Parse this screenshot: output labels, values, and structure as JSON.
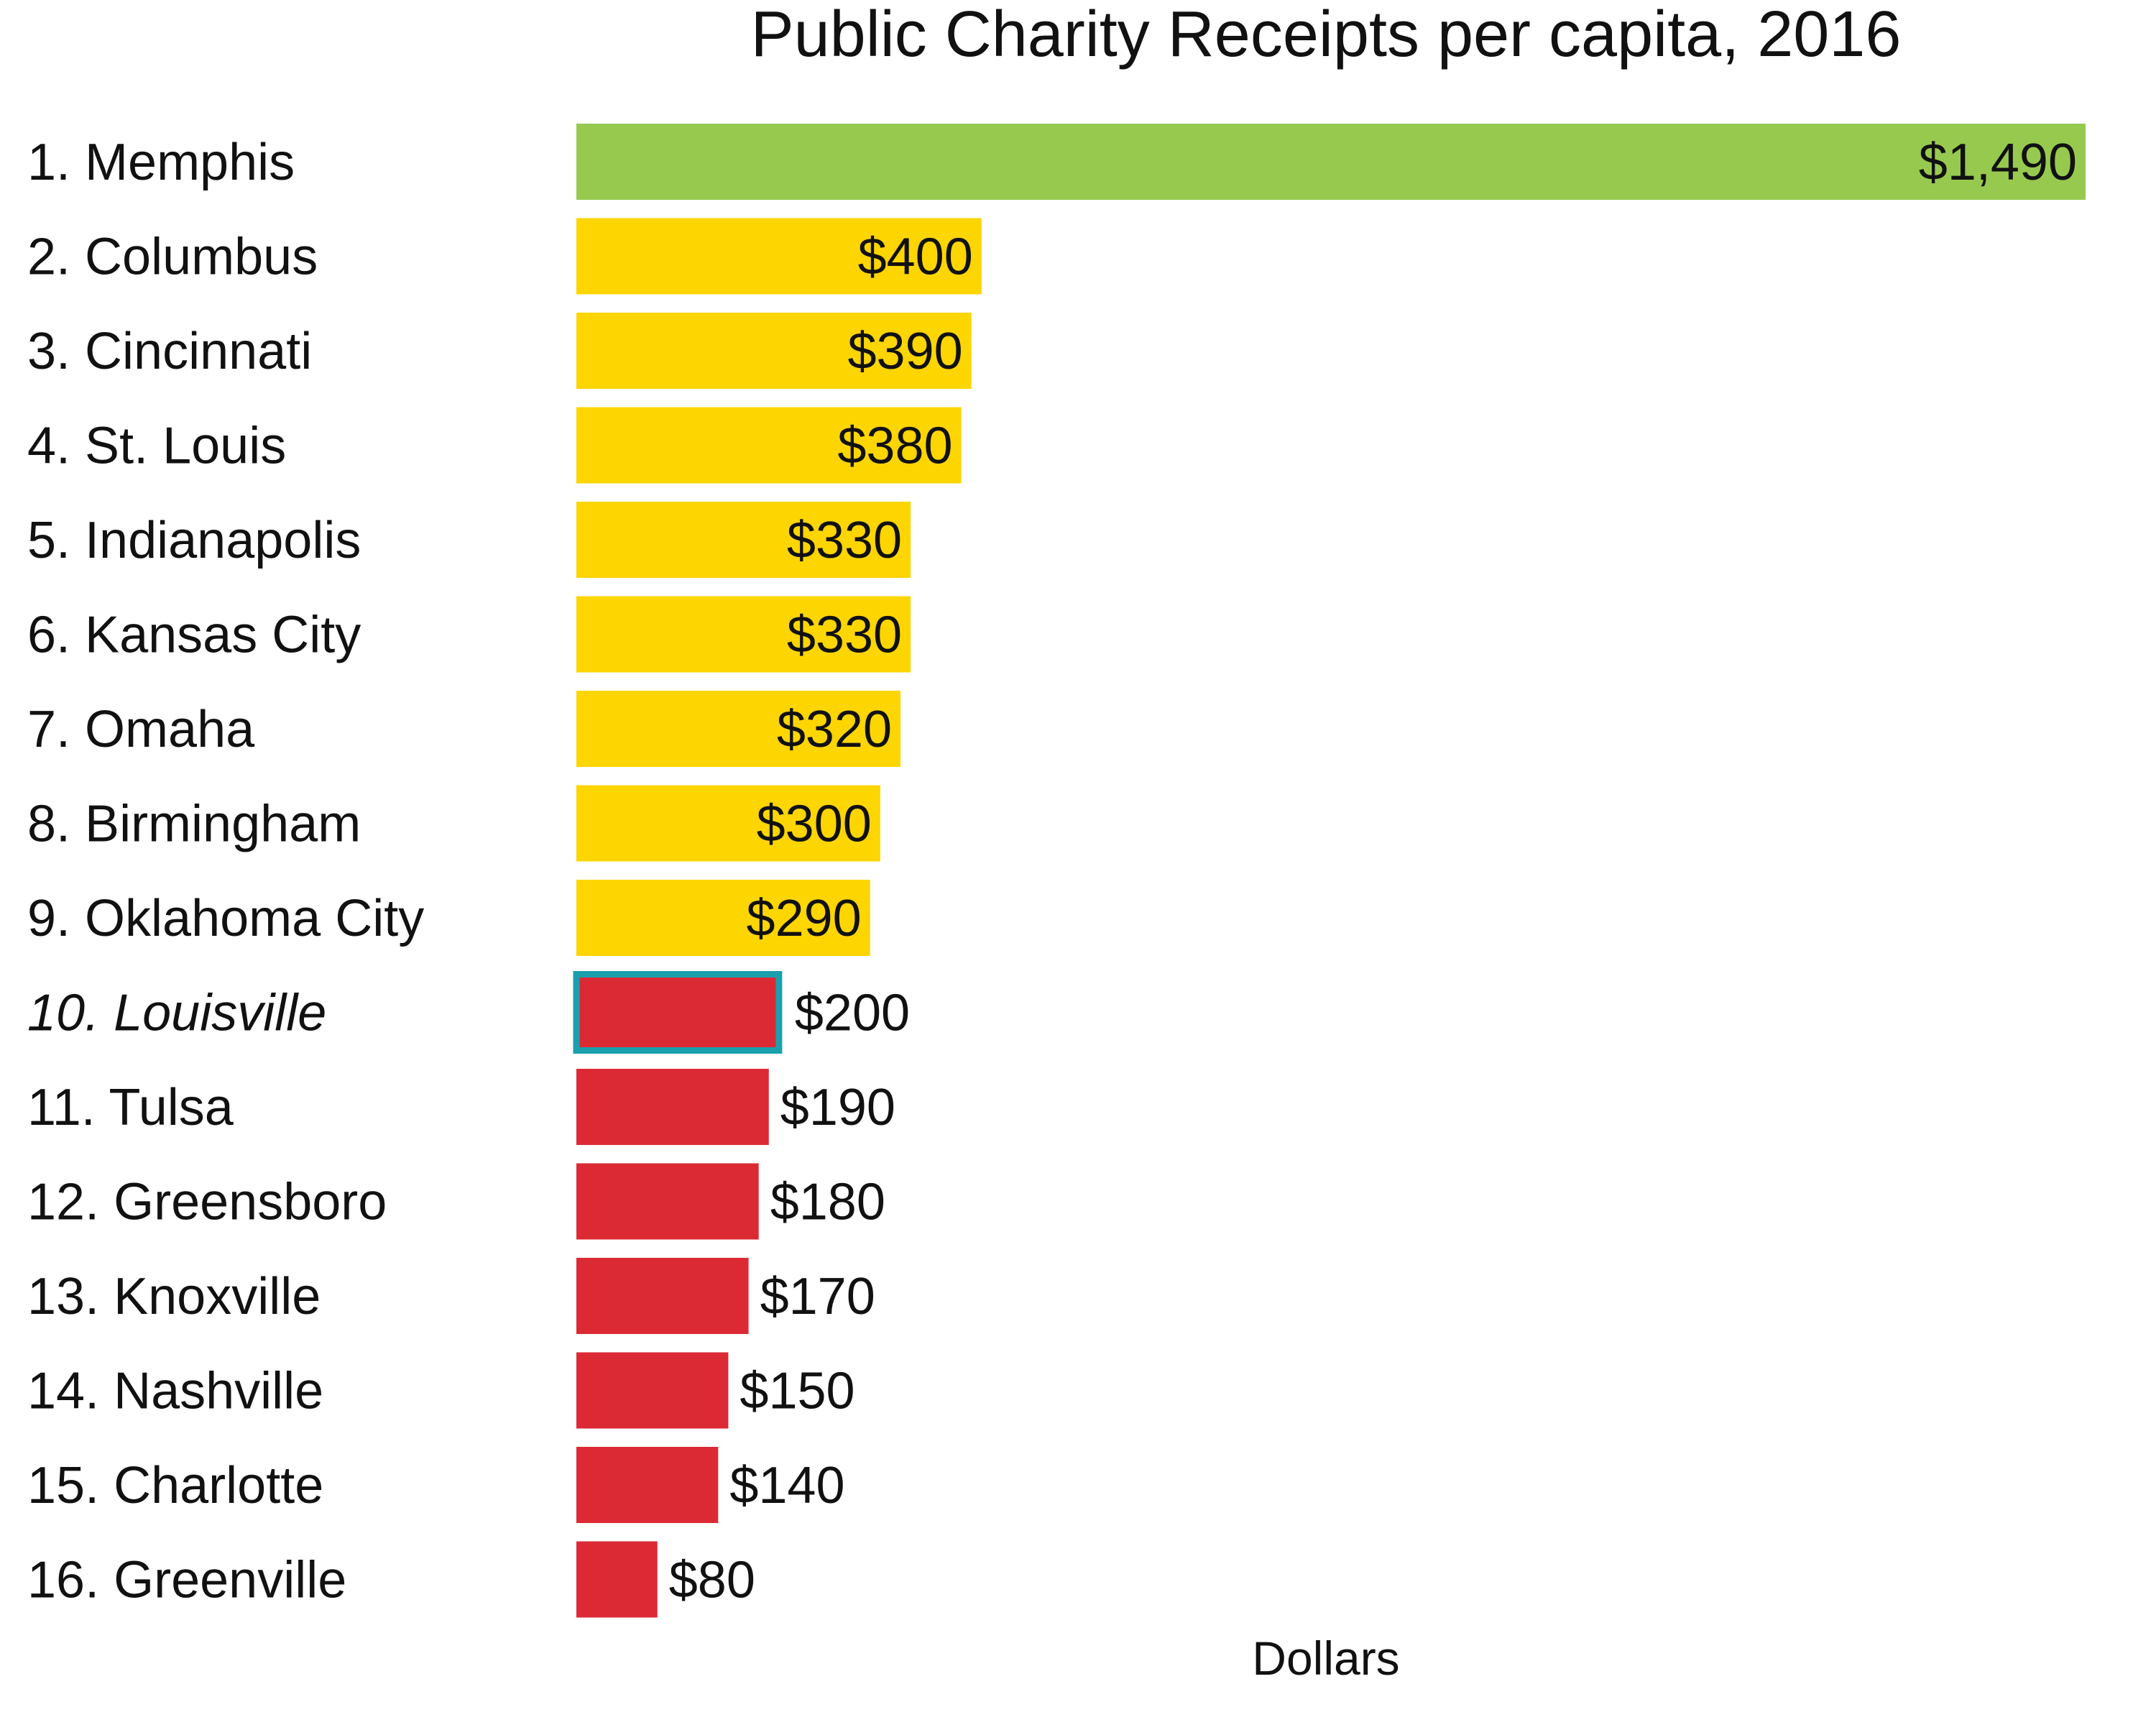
{
  "chart_data": {
    "type": "bar",
    "orientation": "horizontal",
    "title": "Public Charity Receipts per capita, 2016",
    "xlabel": "Dollars",
    "ylabel": "",
    "xlim": [
      0,
      1490
    ],
    "grid": false,
    "legend": "none",
    "categories": [
      "1. Memphis",
      "2. Columbus",
      "3. Cincinnati",
      "4. St. Louis",
      "5. Indianapolis",
      "6. Kansas City",
      "7. Omaha",
      "8. Birmingham",
      "9. Oklahoma City",
      "10. Louisville",
      "11. Tulsa",
      "12. Greensboro",
      "13. Knoxville",
      "14. Nashville",
      "15. Charlotte",
      "16. Greenville"
    ],
    "values": [
      1490,
      400,
      390,
      380,
      330,
      330,
      320,
      300,
      290,
      200,
      190,
      180,
      170,
      150,
      140,
      80
    ],
    "value_labels": [
      "$1,490",
      "$400",
      "$390",
      "$380",
      "$330",
      "$330",
      "$320",
      "$300",
      "$290",
      "$200",
      "$190",
      "$180",
      "$170",
      "$150",
      "$140",
      "$80"
    ],
    "bar_colors": [
      "#97c94f",
      "#fdd500",
      "#fdd500",
      "#fdd500",
      "#fdd500",
      "#fdd500",
      "#fdd500",
      "#fdd500",
      "#fdd500",
      "#dc2a35",
      "#dc2a35",
      "#dc2a35",
      "#dc2a35",
      "#dc2a35",
      "#dc2a35",
      "#dc2a35"
    ],
    "highlight": {
      "category": "10. Louisville",
      "outline_color": "#1aa0ad",
      "label_color": "#1aa0ad"
    }
  }
}
